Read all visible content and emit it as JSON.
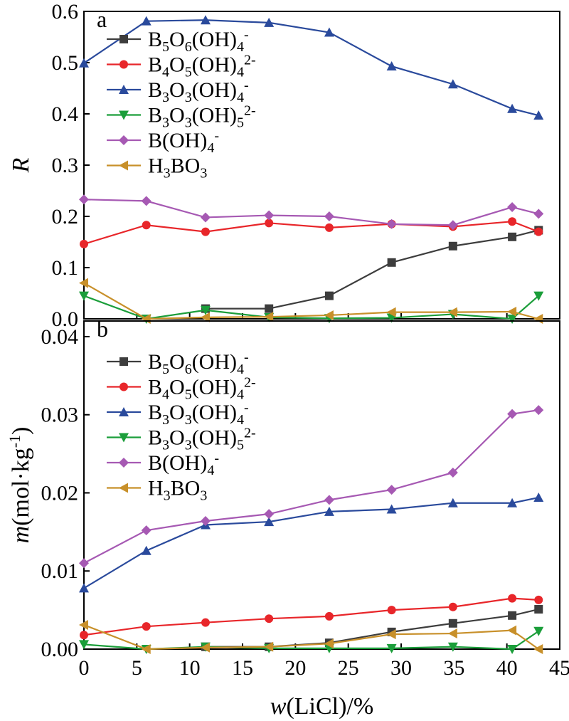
{
  "chart_data": [
    {
      "type": "line",
      "panel_label": "a",
      "ylabel": "R",
      "ylim": [
        0,
        0.6
      ],
      "yticks": [
        "0.0",
        "0.1",
        "0.2",
        "0.3",
        "0.4",
        "0.5",
        "0.6"
      ],
      "xlim": [
        0,
        45
      ],
      "legend_placement": "upper-left",
      "series": [
        {
          "key": "b5o6",
          "name": "B5O6(OH)4-",
          "color": "#3d3d3d",
          "marker": "square",
          "x": [
            11.5,
            17.5,
            23.2,
            29.1,
            34.9,
            40.5,
            43
          ],
          "values": [
            0.02,
            0.02,
            0.045,
            0.11,
            0.142,
            0.16,
            0.173
          ]
        },
        {
          "key": "b4o5",
          "name": "B4O5(OH)42-",
          "color": "#e8262a",
          "marker": "circle",
          "x": [
            0,
            5.9,
            11.5,
            17.5,
            23.2,
            29.1,
            34.9,
            40.5,
            43
          ],
          "values": [
            0.146,
            0.183,
            0.17,
            0.187,
            0.178,
            0.185,
            0.18,
            0.19,
            0.17
          ]
        },
        {
          "key": "b3o3",
          "name": "B3O3(OH)4-",
          "color": "#2a4a9c",
          "marker": "triangle-up",
          "x": [
            0,
            5.9,
            11.5,
            17.5,
            23.2,
            29.1,
            34.9,
            40.5,
            43
          ],
          "values": [
            0.499,
            0.581,
            0.583,
            0.578,
            0.559,
            0.493,
            0.458,
            0.41,
            0.397
          ]
        },
        {
          "key": "b3o3oh5",
          "name": "B3O3(OH)52-",
          "color": "#1b9e3a",
          "marker": "triangle-down",
          "x": [
            0,
            5.9,
            11.5,
            17.5,
            23.2,
            29.1,
            34.9,
            40.5,
            43
          ],
          "values": [
            0.045,
            0.0,
            0.017,
            0.003,
            0.001,
            0.002,
            0.009,
            0.0,
            0.045
          ]
        },
        {
          "key": "boh4",
          "name": "B(OH)4-",
          "color": "#a659b3",
          "marker": "diamond",
          "x": [
            0,
            5.9,
            11.5,
            17.5,
            23.2,
            29.1,
            34.9,
            40.5,
            43
          ],
          "values": [
            0.233,
            0.23,
            0.198,
            0.202,
            0.2,
            0.185,
            0.183,
            0.218,
            0.205
          ]
        },
        {
          "key": "h3bo3",
          "name": "H3BO3",
          "color": "#c8902a",
          "marker": "triangle-left",
          "x": [
            0,
            5.9,
            11.5,
            17.5,
            23.2,
            29.1,
            34.9,
            40.5,
            43
          ],
          "values": [
            0.07,
            0.0,
            0.003,
            0.004,
            0.007,
            0.013,
            0.013,
            0.014,
            0.0
          ]
        }
      ]
    },
    {
      "type": "line",
      "panel_label": "b",
      "ylabel": "m(mol·kg-1)",
      "xlabel": "w(LiCl)/%",
      "ylim": [
        0,
        0.042
      ],
      "yticks": [
        "0.00",
        "0.01",
        "0.02",
        "0.03",
        "0.04"
      ],
      "xlim": [
        0,
        45
      ],
      "xticks": [
        "0",
        "5",
        "10",
        "15",
        "20",
        "25",
        "30",
        "35",
        "40",
        "45"
      ],
      "legend_placement": "upper-left",
      "series": [
        {
          "key": "b5o6",
          "name": "B5O6(OH)4-",
          "color": "#3d3d3d",
          "marker": "square",
          "x": [
            11.5,
            17.5,
            23.2,
            29.1,
            34.9,
            40.5,
            43
          ],
          "values": [
            0.0003,
            0.0003,
            0.0008,
            0.0022,
            0.0033,
            0.0043,
            0.0051
          ]
        },
        {
          "key": "b4o5",
          "name": "B4O5(OH)42-",
          "color": "#e8262a",
          "marker": "circle",
          "x": [
            0,
            5.9,
            11.5,
            17.5,
            23.2,
            29.1,
            34.9,
            40.5,
            43
          ],
          "values": [
            0.0018,
            0.0029,
            0.0034,
            0.0039,
            0.0042,
            0.005,
            0.0054,
            0.0065,
            0.0063
          ]
        },
        {
          "key": "b3o3",
          "name": "B3O3(OH)4-",
          "color": "#2a4a9c",
          "marker": "triangle-up",
          "x": [
            0,
            5.9,
            11.5,
            17.5,
            23.2,
            29.1,
            34.9,
            40.5,
            43
          ],
          "values": [
            0.0078,
            0.0126,
            0.0159,
            0.0163,
            0.0176,
            0.0179,
            0.0187,
            0.0187,
            0.0194
          ]
        },
        {
          "key": "b3o3oh5",
          "name": "B3O3(OH)52-",
          "color": "#1b9e3a",
          "marker": "triangle-down",
          "x": [
            0,
            5.9,
            11.5,
            17.5,
            23.2,
            29.1,
            34.9,
            40.5,
            43
          ],
          "values": [
            0.0006,
            0.0,
            0.0003,
            0.0001,
            0.0001,
            0.0001,
            0.0003,
            0.0,
            0.0023
          ]
        },
        {
          "key": "boh4",
          "name": "B(OH)4-",
          "color": "#a659b3",
          "marker": "diamond",
          "x": [
            0,
            5.9,
            11.5,
            17.5,
            23.2,
            29.1,
            34.9,
            40.5,
            43
          ],
          "values": [
            0.011,
            0.0152,
            0.0164,
            0.0173,
            0.0191,
            0.0204,
            0.0226,
            0.0301,
            0.0306
          ]
        },
        {
          "key": "h3bo3",
          "name": "H3BO3",
          "color": "#c8902a",
          "marker": "triangle-left",
          "x": [
            0,
            5.9,
            11.5,
            17.5,
            23.2,
            29.1,
            34.9,
            40.5,
            43
          ],
          "values": [
            0.0031,
            0.0,
            0.0002,
            0.0003,
            0.0007,
            0.0019,
            0.002,
            0.0024,
            0.0
          ]
        }
      ]
    }
  ]
}
